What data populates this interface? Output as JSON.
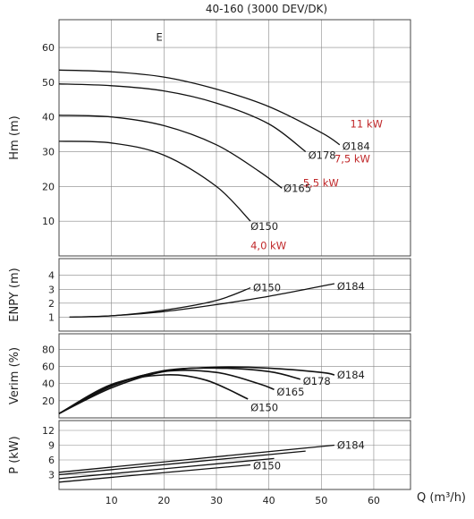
{
  "chart_data": {
    "type": "line",
    "title": "40-160 (3000 DEV/DK)",
    "xlabel": "Q (m³/h)",
    "x_ticks": [
      "10",
      "20",
      "30",
      "40",
      "50",
      "60"
    ],
    "xlim": [
      0,
      67
    ],
    "grid": true,
    "panels": [
      {
        "id": "head",
        "ylabel": "Hm (m)",
        "ylim": [
          0,
          68
        ],
        "y_ticks": [
          "10",
          "20",
          "30",
          "40",
          "50",
          "60"
        ],
        "annotations": [
          {
            "text": "E",
            "x": 18.5,
            "y": 63
          }
        ],
        "series": [
          {
            "name": "Ø184",
            "label": "Ø184",
            "points": [
              [
                0,
                53.5
              ],
              [
                10,
                53
              ],
              [
                20,
                51.5
              ],
              [
                30,
                48
              ],
              [
                40,
                43
              ],
              [
                50,
                35.5
              ],
              [
                53.5,
                32
              ]
            ],
            "label_x": 54,
            "label_y": 31.5
          },
          {
            "name": "Ø178",
            "label": "Ø178",
            "points": [
              [
                0,
                49.5
              ],
              [
                10,
                49
              ],
              [
                20,
                47.5
              ],
              [
                30,
                44
              ],
              [
                40,
                38
              ],
              [
                47,
                30
              ]
            ],
            "label_x": 47.5,
            "label_y": 29
          },
          {
            "name": "Ø165",
            "label": "Ø165",
            "points": [
              [
                0,
                40.5
              ],
              [
                10,
                40
              ],
              [
                20,
                37.5
              ],
              [
                30,
                32
              ],
              [
                38,
                24.5
              ],
              [
                42.5,
                19.5
              ]
            ],
            "label_x": 42.8,
            "label_y": 19.5
          },
          {
            "name": "Ø150",
            "label": "Ø150",
            "points": [
              [
                0,
                33
              ],
              [
                10,
                32.5
              ],
              [
                20,
                29
              ],
              [
                30,
                20
              ],
              [
                36.5,
                10
              ]
            ],
            "label_x": 36.5,
            "label_y": 8.5
          }
        ],
        "power_labels": [
          {
            "text": "11 kW",
            "x": 55.5,
            "y": 38
          },
          {
            "text": "7,5 kW",
            "x": 52.5,
            "y": 28
          },
          {
            "text": "5,5 kW",
            "x": 46.5,
            "y": 21
          },
          {
            "text": "4,0 kW",
            "x": 36.5,
            "y": 3
          }
        ]
      },
      {
        "id": "npsh",
        "ylabel": "ENPY (m)",
        "ylim": [
          0,
          5.2
        ],
        "y_ticks": [
          "1",
          "2",
          "3",
          "4"
        ],
        "series": [
          {
            "name": "Ø150",
            "label": "Ø150",
            "points": [
              [
                2,
                1
              ],
              [
                10,
                1.1
              ],
              [
                20,
                1.5
              ],
              [
                30,
                2.2
              ],
              [
                36.5,
                3.1
              ]
            ],
            "label_x": 37,
            "label_y": 3.1
          },
          {
            "name": "Ø184",
            "label": "Ø184",
            "points": [
              [
                2,
                1
              ],
              [
                10,
                1.1
              ],
              [
                20,
                1.4
              ],
              [
                30,
                1.9
              ],
              [
                40,
                2.5
              ],
              [
                52.5,
                3.4
              ]
            ],
            "label_x": 53,
            "label_y": 3.2
          }
        ]
      },
      {
        "id": "efficiency",
        "ylabel": "Verim (%)",
        "ylim": [
          0,
          98
        ],
        "y_ticks": [
          "20",
          "40",
          "60",
          "80"
        ],
        "series": [
          {
            "name": "Ø184",
            "label": "Ø184",
            "points": [
              [
                0,
                5
              ],
              [
                10,
                35
              ],
              [
                20,
                54
              ],
              [
                30,
                59
              ],
              [
                40,
                58
              ],
              [
                50,
                53
              ],
              [
                52.5,
                50
              ]
            ],
            "label_x": 53,
            "label_y": 50
          },
          {
            "name": "Ø178",
            "label": "Ø178",
            "points": [
              [
                0,
                5
              ],
              [
                10,
                37
              ],
              [
                20,
                55
              ],
              [
                30,
                58
              ],
              [
                40,
                54
              ],
              [
                46,
                45
              ]
            ],
            "label_x": 46.5,
            "label_y": 43
          },
          {
            "name": "Ø165",
            "label": "Ø165",
            "points": [
              [
                0,
                5
              ],
              [
                10,
                38
              ],
              [
                20,
                54
              ],
              [
                30,
                53
              ],
              [
                38,
                40
              ],
              [
                41,
                33
              ]
            ],
            "label_x": 41.5,
            "label_y": 30
          },
          {
            "name": "Ø150",
            "label": "Ø150",
            "points": [
              [
                0,
                5
              ],
              [
                10,
                39
              ],
              [
                20,
                50
              ],
              [
                28,
                44
              ],
              [
                36,
                22
              ]
            ],
            "label_x": 36.5,
            "label_y": 12
          }
        ]
      },
      {
        "id": "power",
        "ylabel": "P (kW)",
        "ylim": [
          0,
          14
        ],
        "y_ticks": [
          "3",
          "6",
          "9",
          "12"
        ],
        "series": [
          {
            "name": "Ø184",
            "label": "Ø184",
            "points": [
              [
                0,
                3.5
              ],
              [
                52.5,
                9
              ]
            ],
            "label_x": 53,
            "label_y": 9
          },
          {
            "name": "Ø178",
            "label": "",
            "points": [
              [
                0,
                3
              ],
              [
                47,
                7.8
              ]
            ],
            "label_x": null,
            "label_y": null
          },
          {
            "name": "Ø165",
            "label": "",
            "points": [
              [
                0,
                2.2
              ],
              [
                41,
                6.3
              ]
            ],
            "label_x": null,
            "label_y": null
          },
          {
            "name": "Ø150",
            "label": "Ø150",
            "points": [
              [
                0,
                1.5
              ],
              [
                36.5,
                5
              ]
            ],
            "label_x": 37,
            "label_y": 4.8
          }
        ]
      }
    ]
  }
}
